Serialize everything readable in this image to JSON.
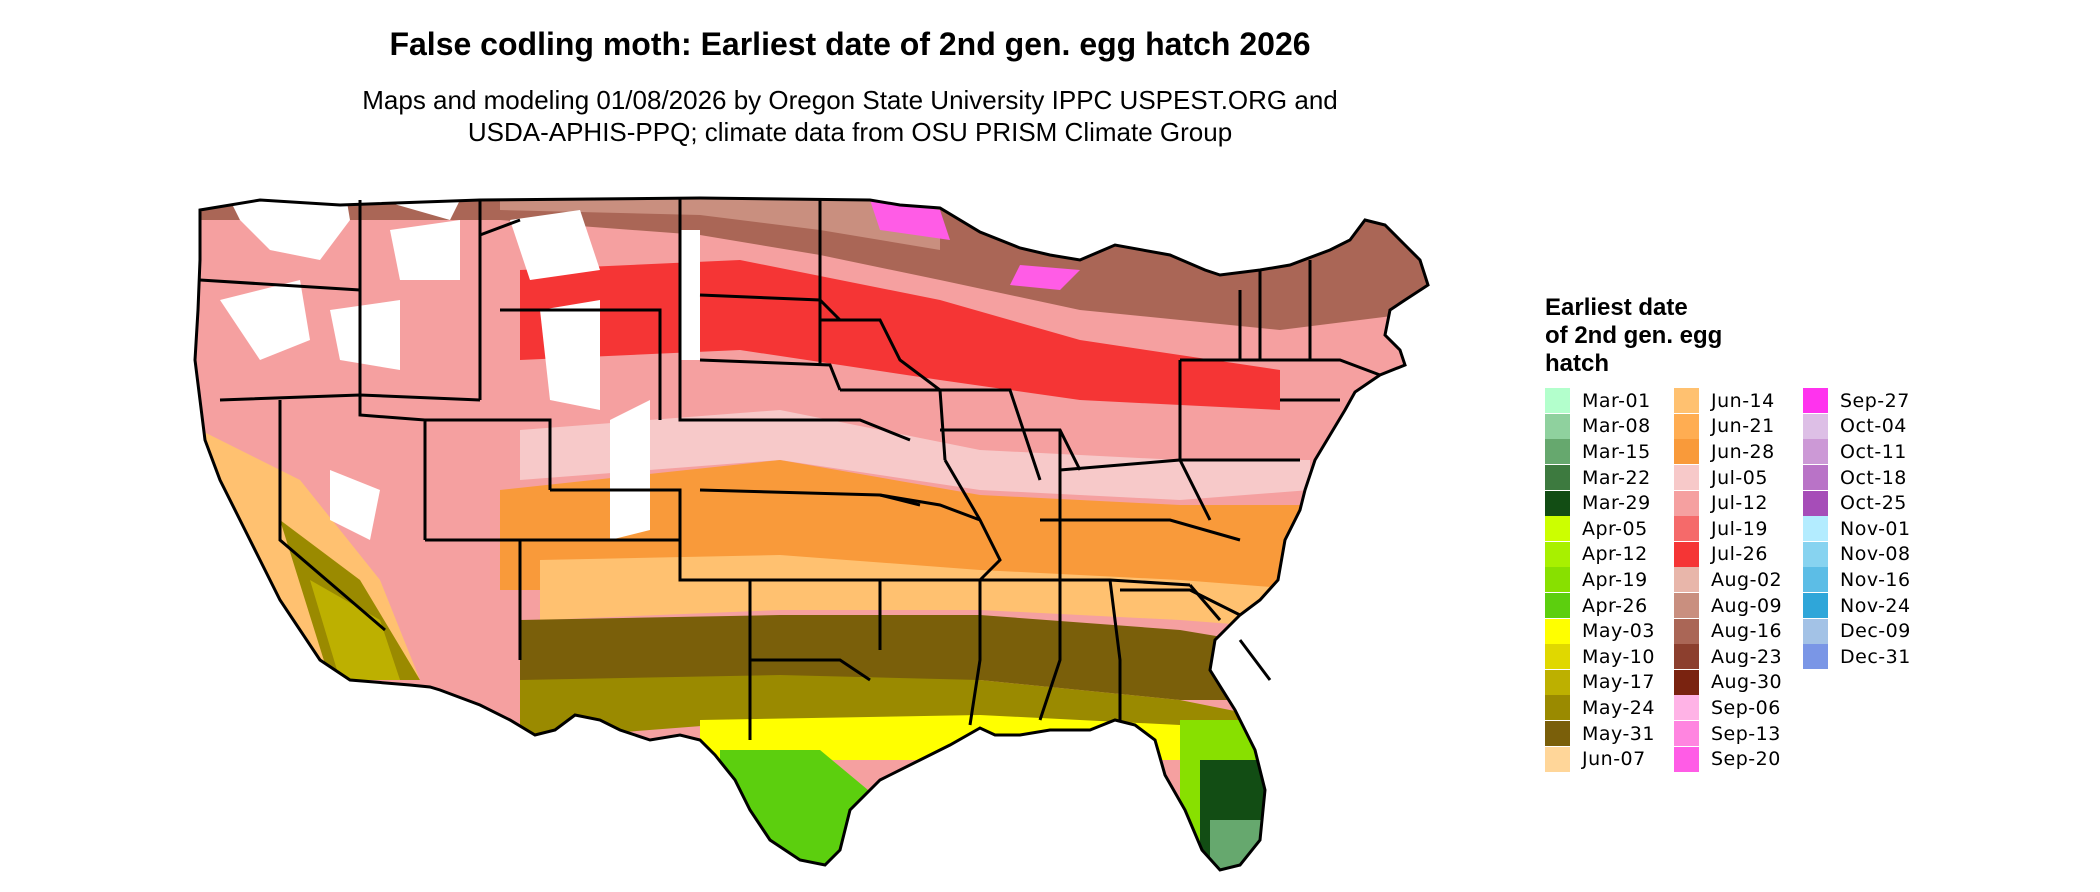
{
  "title": "False codling moth: Earliest date of 2nd gen. egg hatch 2026",
  "subtitle_line1": "Maps and modeling 01/08/2026 by Oregon State University IPPC USPEST.ORG and",
  "subtitle_line2": "USDA-APHIS-PPQ; climate data from OSU PRISM Climate Group",
  "legend": {
    "title_line1": "Earliest date",
    "title_line2": "of 2nd gen. egg",
    "title_line3": "hatch",
    "columns": [
      [
        {
          "label": "Mar-01",
          "color": "#b3ffcc"
        },
        {
          "label": "Mar-08",
          "color": "#8fd19e"
        },
        {
          "label": "Mar-15",
          "color": "#66a86e"
        },
        {
          "label": "Mar-22",
          "color": "#3d7a3f"
        },
        {
          "label": "Mar-29",
          "color": "#124d14"
        },
        {
          "label": "Apr-05",
          "color": "#ccff00"
        },
        {
          "label": "Apr-12",
          "color": "#a8f000"
        },
        {
          "label": "Apr-19",
          "color": "#88e000"
        },
        {
          "label": "Apr-26",
          "color": "#5ccf0e"
        },
        {
          "label": "May-03",
          "color": "#ffff00"
        },
        {
          "label": "May-10",
          "color": "#e0d800"
        },
        {
          "label": "May-17",
          "color": "#bdb000"
        },
        {
          "label": "May-24",
          "color": "#9a8a00"
        },
        {
          "label": "May-31",
          "color": "#7a5f0a"
        },
        {
          "label": "Jun-07",
          "color": "#ffd699"
        }
      ],
      [
        {
          "label": "Jun-14",
          "color": "#ffc170"
        },
        {
          "label": "Jun-21",
          "color": "#ffad52"
        },
        {
          "label": "Jun-28",
          "color": "#f99a3a"
        },
        {
          "label": "Jul-05",
          "color": "#f7c9c9"
        },
        {
          "label": "Jul-12",
          "color": "#f5a0a0"
        },
        {
          "label": "Jul-19",
          "color": "#f56a6a"
        },
        {
          "label": "Jul-26",
          "color": "#f53535"
        },
        {
          "label": "Aug-02",
          "color": "#e8b6aa"
        },
        {
          "label": "Aug-09",
          "color": "#c98f7f"
        },
        {
          "label": "Aug-16",
          "color": "#aa6656"
        },
        {
          "label": "Aug-23",
          "color": "#8c3f2e"
        },
        {
          "label": "Aug-30",
          "color": "#7a2310"
        },
        {
          "label": "Sep-06",
          "color": "#ffb3e6"
        },
        {
          "label": "Sep-13",
          "color": "#ff85e0"
        },
        {
          "label": "Sep-20",
          "color": "#ff5ce6"
        }
      ],
      [
        {
          "label": "Sep-27",
          "color": "#ff33ee"
        },
        {
          "label": "Oct-04",
          "color": "#ddbfe6"
        },
        {
          "label": "Oct-11",
          "color": "#cc99d6"
        },
        {
          "label": "Oct-18",
          "color": "#b973c7"
        },
        {
          "label": "Oct-25",
          "color": "#a64db8"
        },
        {
          "label": "Nov-01",
          "color": "#b3ecff"
        },
        {
          "label": "Nov-08",
          "color": "#87d3f0"
        },
        {
          "label": "Nov-16",
          "color": "#5cbde6"
        },
        {
          "label": "Nov-24",
          "color": "#2fa6d9"
        },
        {
          "label": "Dec-09",
          "color": "#a3c2e6"
        },
        {
          "label": "Dec-31",
          "color": "#7a96e6"
        }
      ]
    ]
  }
}
